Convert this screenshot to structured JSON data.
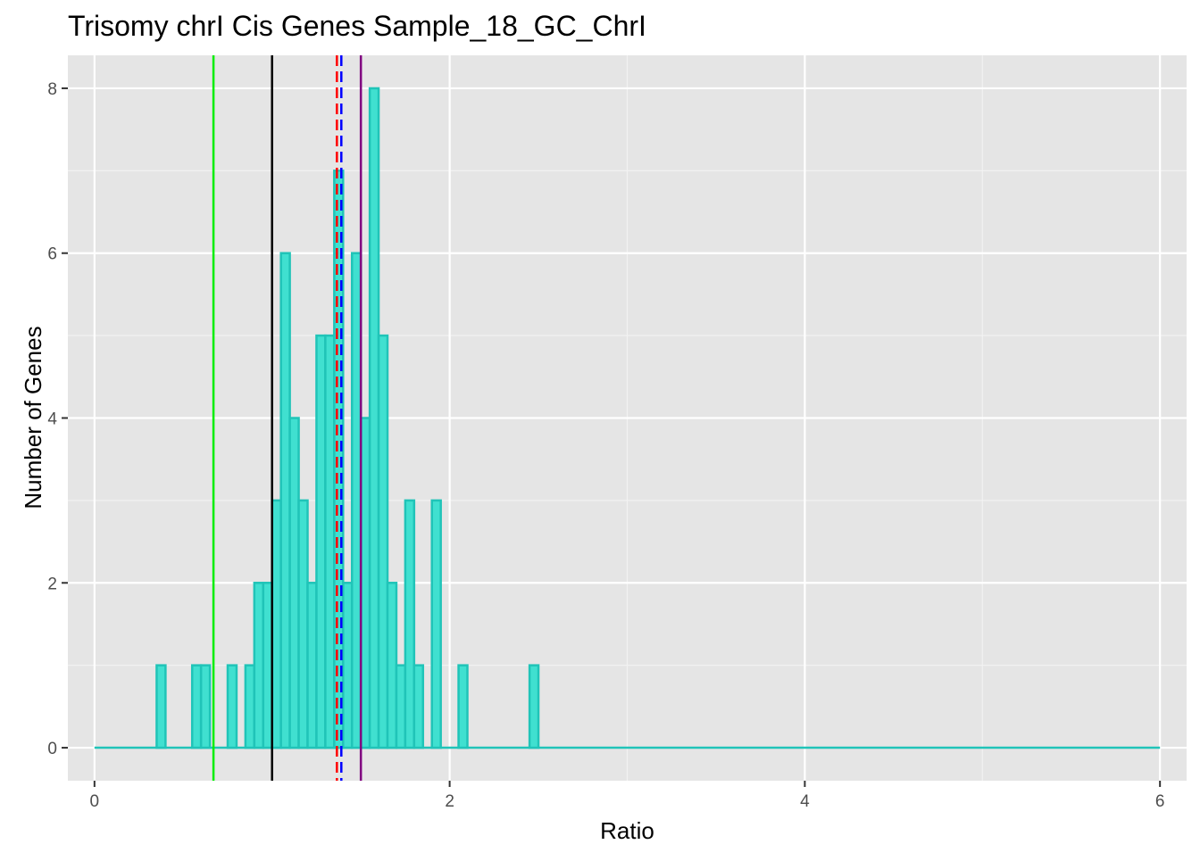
{
  "chart_data": {
    "type": "bar",
    "title": "Trisomy chrI Cis Genes Sample_18_GC_ChrI",
    "xlabel": "Ratio",
    "ylabel": "Number of Genes",
    "xlim": [
      -0.15,
      6.15
    ],
    "ylim": [
      -0.4,
      8.4
    ],
    "x_ticks": [
      0,
      2,
      4,
      6
    ],
    "x_tick_labels": [
      "0",
      "2",
      "4",
      "6"
    ],
    "y_ticks": [
      0,
      2,
      4,
      6,
      8
    ],
    "y_tick_labels": [
      "0",
      "2",
      "4",
      "6",
      "8"
    ],
    "grid": true,
    "bin_width": 0.05,
    "bins": [
      {
        "x": 0.375,
        "count": 1
      },
      {
        "x": 0.575,
        "count": 1
      },
      {
        "x": 0.625,
        "count": 1
      },
      {
        "x": 0.775,
        "count": 1
      },
      {
        "x": 0.875,
        "count": 1
      },
      {
        "x": 0.925,
        "count": 2
      },
      {
        "x": 0.975,
        "count": 2
      },
      {
        "x": 1.025,
        "count": 3
      },
      {
        "x": 1.075,
        "count": 6
      },
      {
        "x": 1.125,
        "count": 4
      },
      {
        "x": 1.175,
        "count": 3
      },
      {
        "x": 1.225,
        "count": 2
      },
      {
        "x": 1.275,
        "count": 5
      },
      {
        "x": 1.325,
        "count": 5
      },
      {
        "x": 1.375,
        "count": 7
      },
      {
        "x": 1.425,
        "count": 2
      },
      {
        "x": 1.475,
        "count": 6
      },
      {
        "x": 1.525,
        "count": 4
      },
      {
        "x": 1.575,
        "count": 8
      },
      {
        "x": 1.625,
        "count": 5
      },
      {
        "x": 1.675,
        "count": 2
      },
      {
        "x": 1.725,
        "count": 1
      },
      {
        "x": 1.775,
        "count": 3
      },
      {
        "x": 1.825,
        "count": 1
      },
      {
        "x": 1.925,
        "count": 3
      },
      {
        "x": 2.075,
        "count": 1
      },
      {
        "x": 2.475,
        "count": 1
      }
    ],
    "baseline_range": [
      0,
      6
    ],
    "reference_lines": [
      {
        "x": 0.67,
        "color": "#00ee00",
        "style": "solid"
      },
      {
        "x": 1.0,
        "color": "#000000",
        "style": "solid"
      },
      {
        "x": 1.365,
        "color": "#ff0000",
        "style": "dashed"
      },
      {
        "x": 1.39,
        "color": "#0000ff",
        "style": "dashed"
      },
      {
        "x": 1.5,
        "color": "#800080",
        "style": "solid"
      }
    ],
    "colors": {
      "bar_fill": "#40e0d0",
      "bar_outline": "#20c4b8",
      "panel_background": "#e5e5e5",
      "grid_major": "#ffffff",
      "grid_minor": "#f2f2f2",
      "tick_label": "#4d4d4d"
    }
  }
}
